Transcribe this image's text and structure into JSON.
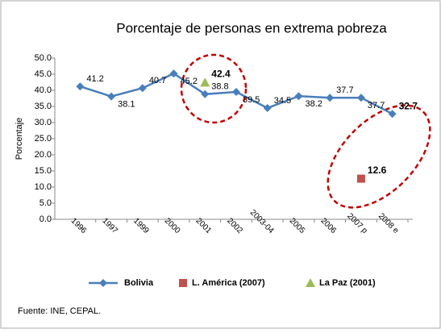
{
  "chart_data": {
    "type": "line",
    "title": "Porcentaje de personas en extrema pobreza",
    "y_label": "Porcentaje",
    "source": "Fuente: INE, CEPAL.",
    "categories": [
      "1996",
      "1997",
      "1999",
      "2000",
      "2001",
      "2002",
      "2003-04",
      "2005",
      "2006",
      "2007 p",
      "2008 e"
    ],
    "series": [
      {
        "name": "Bolivia",
        "color": "#4a7ebb",
        "marker": "diamond",
        "line": true,
        "values": [
          41.2,
          38.1,
          40.7,
          45.2,
          38.8,
          39.5,
          34.5,
          38.2,
          37.7,
          37.7,
          32.7
        ]
      },
      {
        "name": "L. América (2007)",
        "color": "#c0504d",
        "marker": "square",
        "line": false,
        "values": [
          null,
          null,
          null,
          null,
          null,
          null,
          null,
          null,
          null,
          12.6,
          null
        ]
      },
      {
        "name": "La Paz (2001)",
        "color": "#9bbb59",
        "marker": "triangle",
        "line": false,
        "values": [
          null,
          null,
          null,
          null,
          42.4,
          null,
          null,
          null,
          null,
          null,
          null
        ]
      }
    ],
    "ylim": [
      0,
      50
    ],
    "yticks": [
      {
        "value": 0,
        "label": "0.0"
      },
      {
        "value": 5,
        "label": "5.0"
      },
      {
        "value": 10,
        "label": "10.0"
      },
      {
        "value": 15,
        "label": "15.0"
      },
      {
        "value": 20,
        "label": "20.0"
      },
      {
        "value": 25,
        "label": "25.0"
      },
      {
        "value": 30,
        "label": "30.0"
      },
      {
        "value": 35,
        "label": "35.0"
      },
      {
        "value": 40,
        "label": "40.0"
      },
      {
        "value": 45,
        "label": "45.0"
      },
      {
        "value": 50,
        "label": "50.0"
      }
    ],
    "grid": false
  }
}
